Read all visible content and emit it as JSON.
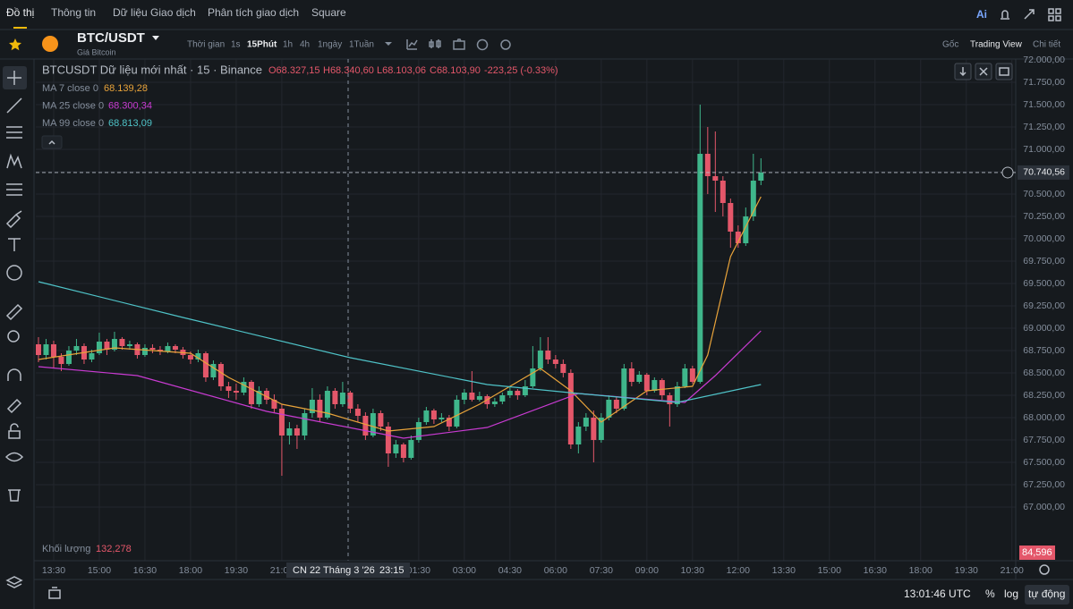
{
  "nav": {
    "tabs": [
      "Đồ thị",
      "Thông tin",
      "Dữ liệu Giao dịch",
      "Phân tích giao dịch",
      "Square"
    ],
    "ai": "Ai"
  },
  "toolbar": {
    "symbol": "BTC/USDT",
    "subtitle": "Giá Bitcoin",
    "intervals": [
      "Thời gian",
      "1s",
      "15Phút",
      "1h",
      "4h",
      "1ngày",
      "1Tuần"
    ],
    "links": [
      "Gốc",
      "Trading View",
      "Chi tiết"
    ]
  },
  "chart_data": {
    "type": "candlestick",
    "title": "BTCUSDT Dữ liệu mới nhất · 15 · Binance",
    "ohlc_labels": [
      "O68.327,15",
      "H68.340,60",
      "L68.103,06",
      "C68.103,90"
    ],
    "change": "-223,25 (-0.33%)",
    "up_color": "#3fb68b",
    "down_color": "#e4576a",
    "candles": [
      [
        68820,
        68900,
        68620,
        68700
      ],
      [
        68700,
        68880,
        68650,
        68820
      ],
      [
        68820,
        68860,
        68560,
        68680
      ],
      [
        68680,
        68720,
        68520,
        68600
      ],
      [
        68600,
        68800,
        68580,
        68750
      ],
      [
        68750,
        68880,
        68700,
        68800
      ],
      [
        68800,
        68830,
        68600,
        68650
      ],
      [
        68650,
        68760,
        68620,
        68720
      ],
      [
        68720,
        68950,
        68700,
        68850
      ],
      [
        68850,
        68880,
        68700,
        68760
      ],
      [
        68760,
        68960,
        68740,
        68880
      ],
      [
        68880,
        68900,
        68760,
        68800
      ],
      [
        68800,
        68860,
        68760,
        68820
      ],
      [
        68820,
        68840,
        68660,
        68700
      ],
      [
        68700,
        68820,
        68680,
        68780
      ],
      [
        68780,
        68820,
        68720,
        68760
      ],
      [
        68760,
        68800,
        68700,
        68740
      ],
      [
        68740,
        68840,
        68720,
        68800
      ],
      [
        68800,
        68820,
        68720,
        68760
      ],
      [
        68760,
        68790,
        68660,
        68700
      ],
      [
        68700,
        68740,
        68600,
        68650
      ],
      [
        68650,
        68760,
        68620,
        68720
      ],
      [
        68720,
        68740,
        68400,
        68450
      ],
      [
        68450,
        68640,
        68420,
        68600
      ],
      [
        68600,
        68620,
        68300,
        68350
      ],
      [
        68350,
        68400,
        68220,
        68300
      ],
      [
        68300,
        68380,
        68200,
        68280
      ],
      [
        68280,
        68450,
        68250,
        68400
      ],
      [
        68400,
        68420,
        68100,
        68150
      ],
      [
        68150,
        68350,
        68120,
        68300
      ],
      [
        68300,
        68330,
        68150,
        68200
      ],
      [
        68200,
        68260,
        68050,
        68100
      ],
      [
        68100,
        68150,
        67350,
        67800
      ],
      [
        67800,
        67950,
        67700,
        67880
      ],
      [
        67880,
        67920,
        67650,
        67800
      ],
      [
        67800,
        68100,
        67750,
        68050
      ],
      [
        68050,
        68330,
        68000,
        68200
      ],
      [
        68200,
        68260,
        67950,
        68000
      ],
      [
        68000,
        68350,
        67980,
        68300
      ],
      [
        68300,
        68330,
        68100,
        68150
      ],
      [
        68150,
        68400,
        68120,
        68280
      ],
      [
        68280,
        68300,
        68050,
        68100
      ],
      [
        68100,
        68150,
        67950,
        68020
      ],
      [
        68020,
        68060,
        67750,
        67800
      ],
      [
        67800,
        68100,
        67780,
        68050
      ],
      [
        68050,
        68080,
        67850,
        67900
      ],
      [
        67900,
        67950,
        67450,
        67600
      ],
      [
        67600,
        67750,
        67550,
        67700
      ],
      [
        67700,
        67720,
        67500,
        67550
      ],
      [
        67550,
        67800,
        67530,
        67750
      ],
      [
        67750,
        68000,
        67720,
        67950
      ],
      [
        67950,
        68120,
        67920,
        68080
      ],
      [
        68080,
        68100,
        67930,
        67980
      ],
      [
        67980,
        68050,
        67950,
        68000
      ],
      [
        68000,
        68030,
        67850,
        67900
      ],
      [
        67900,
        68250,
        67880,
        68200
      ],
      [
        68200,
        68320,
        68150,
        68280
      ],
      [
        68280,
        68520,
        68180,
        68200
      ],
      [
        68200,
        68290,
        68180,
        68240
      ],
      [
        68240,
        68260,
        68100,
        68150
      ],
      [
        68150,
        68220,
        68120,
        68180
      ],
      [
        68180,
        68280,
        68150,
        68250
      ],
      [
        68250,
        68350,
        68220,
        68300
      ],
      [
        68300,
        68320,
        68200,
        68250
      ],
      [
        68250,
        68420,
        68230,
        68350
      ],
      [
        68350,
        68800,
        68330,
        68550
      ],
      [
        68550,
        68900,
        68520,
        68750
      ],
      [
        68750,
        68900,
        68600,
        68650
      ],
      [
        68650,
        68700,
        68550,
        68600
      ],
      [
        68600,
        68650,
        68450,
        68500
      ],
      [
        68500,
        68540,
        67650,
        67700
      ],
      [
        67700,
        67950,
        67600,
        67900
      ],
      [
        67900,
        68050,
        67850,
        68000
      ],
      [
        68000,
        68080,
        67500,
        67750
      ],
      [
        67750,
        68050,
        67720,
        68000
      ],
      [
        68000,
        68250,
        67970,
        68200
      ],
      [
        68200,
        68230,
        68050,
        68100
      ],
      [
        68100,
        68600,
        68080,
        68550
      ],
      [
        68550,
        68620,
        68350,
        68400
      ],
      [
        68400,
        68520,
        68380,
        68480
      ],
      [
        68480,
        68500,
        68250,
        68300
      ],
      [
        68300,
        68450,
        68280,
        68420
      ],
      [
        68420,
        68440,
        68200,
        68250
      ],
      [
        68250,
        68280,
        67900,
        68150
      ],
      [
        68150,
        68400,
        68120,
        68350
      ],
      [
        68350,
        68600,
        68330,
        68550
      ],
      [
        68550,
        68580,
        68380,
        68400
      ],
      [
        68400,
        71500,
        68380,
        70950
      ],
      [
        70950,
        71250,
        70500,
        70700
      ],
      [
        70700,
        71200,
        70300,
        70650
      ],
      [
        70650,
        70700,
        70250,
        70400
      ],
      [
        70400,
        70450,
        69900,
        70080
      ],
      [
        70080,
        70150,
        69900,
        69950
      ],
      [
        69950,
        70350,
        69920,
        70250
      ],
      [
        70250,
        70950,
        70200,
        70650
      ],
      [
        70650,
        70900,
        70600,
        70740.56
      ]
    ],
    "series": [
      {
        "name": "MA 7 close 0",
        "value_label": "68.139,28",
        "color": "#e8a33a",
        "x": [
          0,
          10,
          20,
          25,
          32,
          38,
          46,
          52,
          58,
          66,
          70,
          74,
          80,
          86,
          88,
          91,
          95
        ],
        "values": [
          68650,
          68780,
          68720,
          68450,
          68150,
          68050,
          67850,
          67900,
          68150,
          68550,
          68300,
          67950,
          68300,
          68350,
          68700,
          69800,
          70470
        ]
      },
      {
        "name": "MA 25 close 0",
        "value_label": "68.300,34",
        "color": "#c93bd2",
        "x": [
          0,
          13,
          30,
          48,
          59,
          71,
          85,
          89,
          95
        ],
        "values": [
          68570,
          68470,
          68070,
          67770,
          67890,
          68270,
          68170,
          68470,
          68970
        ]
      },
      {
        "name": "MA 99 close 0",
        "value_label": "68.813,09",
        "color": "#4fc3c8",
        "x": [
          0,
          19,
          41,
          59,
          71,
          84,
          95
        ],
        "values": [
          69520,
          69120,
          68670,
          68370,
          68270,
          68170,
          68370
        ]
      }
    ],
    "xlim": [
      -0.35,
      128.5
    ],
    "xticks": [
      {
        "value": 2,
        "label": "13:30"
      },
      {
        "value": 8,
        "label": "15:00"
      },
      {
        "value": 14,
        "label": "16:30"
      },
      {
        "value": 20,
        "label": "18:00"
      },
      {
        "value": 26,
        "label": "19:30"
      },
      {
        "value": 32,
        "label": "21:00"
      },
      {
        "value": 50,
        "label": "01:30"
      },
      {
        "value": 56,
        "label": "03:00"
      },
      {
        "value": 62,
        "label": "04:30"
      },
      {
        "value": 68,
        "label": "06:00"
      },
      {
        "value": 74,
        "label": "07:30"
      },
      {
        "value": 80,
        "label": "09:00"
      },
      {
        "value": 86,
        "label": "10:30"
      },
      {
        "value": 92,
        "label": "12:00"
      },
      {
        "value": 98,
        "label": "13:30"
      },
      {
        "value": 104,
        "label": "15:00"
      },
      {
        "value": 110,
        "label": "16:30"
      },
      {
        "value": 116,
        "label": "18:00"
      },
      {
        "value": 122,
        "label": "19:30"
      },
      {
        "value": 128,
        "label": "21:00"
      }
    ],
    "ylim": [
      66400,
      72010
    ],
    "yticks": [
      {
        "value": 72000,
        "label": "72.000,00"
      },
      {
        "value": 71750,
        "label": "71.750,00"
      },
      {
        "value": 71500,
        "label": "71.500,00"
      },
      {
        "value": 71250,
        "label": "71.250,00"
      },
      {
        "value": 71000,
        "label": "71.000,00"
      },
      {
        "value": 70750,
        "label": "70.750,00"
      },
      {
        "value": 70500,
        "label": "70.500,00"
      },
      {
        "value": 70250,
        "label": "70.250,00"
      },
      {
        "value": 70000,
        "label": "70.000,00"
      },
      {
        "value": 69750,
        "label": "69.750,00"
      },
      {
        "value": 69500,
        "label": "69.500,00"
      },
      {
        "value": 69250,
        "label": "69.250,00"
      },
      {
        "value": 69000,
        "label": "69.000,00"
      },
      {
        "value": 68750,
        "label": "68.750,00"
      },
      {
        "value": 68500,
        "label": "68.500,00"
      },
      {
        "value": 68250,
        "label": "68.250,00"
      },
      {
        "value": 68000,
        "label": "68.000,00"
      },
      {
        "value": 67750,
        "label": "67.750,00"
      },
      {
        "value": 67500,
        "label": "67.500,00"
      },
      {
        "value": 67250,
        "label": "67.250,00"
      },
      {
        "value": 67000,
        "label": "67.000,00"
      }
    ],
    "grid": true,
    "last_price": {
      "value": 70740.56,
      "label": "70.740,56"
    },
    "crosshair_date": "CN 22 Tháng 3 '26",
    "crosshair_time": "23:15",
    "volume_title": "Khối lượng",
    "volume_value": "132,278",
    "volume_last": "84,596"
  },
  "status": {
    "clock": "13:01:46 UTC",
    "percent": "%",
    "log": "log",
    "auto": "tự động"
  }
}
